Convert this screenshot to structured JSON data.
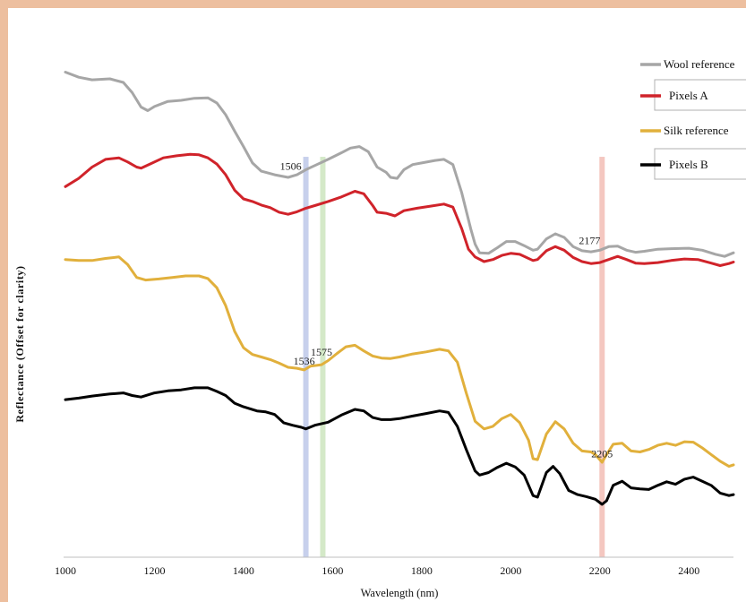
{
  "chart_data": {
    "type": "line",
    "title": "",
    "xlabel": "Wavelength (nm)",
    "ylabel": "Reflectance (Offset for clarity)",
    "xlim": [
      1000,
      2500
    ],
    "ylim": [
      0,
      1
    ],
    "xticks": [
      1000,
      1200,
      1400,
      1600,
      1800,
      2000,
      2200,
      2400
    ],
    "grid": false,
    "legend_position": "top-right",
    "series": [
      {
        "name": "Wool reference",
        "color": "#A6A6A6",
        "points": [
          [
            1000,
            0.945
          ],
          [
            1030,
            0.935
          ],
          [
            1060,
            0.93
          ],
          [
            1100,
            0.932
          ],
          [
            1130,
            0.925
          ],
          [
            1150,
            0.905
          ],
          [
            1170,
            0.877
          ],
          [
            1185,
            0.87
          ],
          [
            1200,
            0.878
          ],
          [
            1230,
            0.888
          ],
          [
            1260,
            0.89
          ],
          [
            1290,
            0.894
          ],
          [
            1320,
            0.895
          ],
          [
            1340,
            0.885
          ],
          [
            1360,
            0.862
          ],
          [
            1380,
            0.83
          ],
          [
            1400,
            0.8
          ],
          [
            1420,
            0.768
          ],
          [
            1440,
            0.752
          ],
          [
            1470,
            0.745
          ],
          [
            1500,
            0.74
          ],
          [
            1520,
            0.745
          ],
          [
            1540,
            0.755
          ],
          [
            1560,
            0.763
          ],
          [
            1590,
            0.775
          ],
          [
            1620,
            0.788
          ],
          [
            1640,
            0.797
          ],
          [
            1660,
            0.8
          ],
          [
            1680,
            0.79
          ],
          [
            1700,
            0.76
          ],
          [
            1720,
            0.75
          ],
          [
            1730,
            0.74
          ],
          [
            1745,
            0.738
          ],
          [
            1760,
            0.755
          ],
          [
            1780,
            0.765
          ],
          [
            1800,
            0.768
          ],
          [
            1830,
            0.773
          ],
          [
            1850,
            0.775
          ],
          [
            1870,
            0.765
          ],
          [
            1890,
            0.71
          ],
          [
            1910,
            0.64
          ],
          [
            1920,
            0.61
          ],
          [
            1930,
            0.593
          ],
          [
            1950,
            0.592
          ],
          [
            1970,
            0.603
          ],
          [
            1990,
            0.615
          ],
          [
            2010,
            0.615
          ],
          [
            2030,
            0.607
          ],
          [
            2050,
            0.598
          ],
          [
            2060,
            0.6
          ],
          [
            2080,
            0.62
          ],
          [
            2100,
            0.63
          ],
          [
            2120,
            0.623
          ],
          [
            2140,
            0.605
          ],
          [
            2160,
            0.597
          ],
          [
            2180,
            0.595
          ],
          [
            2200,
            0.598
          ],
          [
            2220,
            0.605
          ],
          [
            2240,
            0.606
          ],
          [
            2260,
            0.598
          ],
          [
            2280,
            0.594
          ],
          [
            2300,
            0.596
          ],
          [
            2330,
            0.6
          ],
          [
            2360,
            0.601
          ],
          [
            2400,
            0.602
          ],
          [
            2430,
            0.598
          ],
          [
            2460,
            0.59
          ],
          [
            2480,
            0.586
          ],
          [
            2500,
            0.593
          ]
        ]
      },
      {
        "name": "Pixels A",
        "color": "#D0232A",
        "points": [
          [
            1000,
            0.722
          ],
          [
            1030,
            0.738
          ],
          [
            1060,
            0.76
          ],
          [
            1090,
            0.775
          ],
          [
            1120,
            0.778
          ],
          [
            1140,
            0.77
          ],
          [
            1160,
            0.76
          ],
          [
            1170,
            0.758
          ],
          [
            1190,
            0.766
          ],
          [
            1220,
            0.778
          ],
          [
            1250,
            0.782
          ],
          [
            1280,
            0.785
          ],
          [
            1300,
            0.784
          ],
          [
            1320,
            0.778
          ],
          [
            1340,
            0.766
          ],
          [
            1360,
            0.745
          ],
          [
            1380,
            0.715
          ],
          [
            1400,
            0.698
          ],
          [
            1420,
            0.693
          ],
          [
            1440,
            0.686
          ],
          [
            1460,
            0.681
          ],
          [
            1480,
            0.672
          ],
          [
            1500,
            0.668
          ],
          [
            1520,
            0.673
          ],
          [
            1540,
            0.68
          ],
          [
            1560,
            0.685
          ],
          [
            1590,
            0.693
          ],
          [
            1620,
            0.702
          ],
          [
            1650,
            0.713
          ],
          [
            1670,
            0.708
          ],
          [
            1690,
            0.685
          ],
          [
            1700,
            0.672
          ],
          [
            1720,
            0.67
          ],
          [
            1740,
            0.665
          ],
          [
            1760,
            0.675
          ],
          [
            1790,
            0.68
          ],
          [
            1820,
            0.684
          ],
          [
            1850,
            0.688
          ],
          [
            1870,
            0.682
          ],
          [
            1890,
            0.64
          ],
          [
            1905,
            0.6
          ],
          [
            1920,
            0.585
          ],
          [
            1940,
            0.576
          ],
          [
            1960,
            0.58
          ],
          [
            1980,
            0.588
          ],
          [
            2000,
            0.592
          ],
          [
            2020,
            0.59
          ],
          [
            2050,
            0.578
          ],
          [
            2060,
            0.58
          ],
          [
            2080,
            0.597
          ],
          [
            2100,
            0.605
          ],
          [
            2120,
            0.598
          ],
          [
            2140,
            0.584
          ],
          [
            2160,
            0.576
          ],
          [
            2180,
            0.572
          ],
          [
            2200,
            0.574
          ],
          [
            2220,
            0.58
          ],
          [
            2240,
            0.586
          ],
          [
            2260,
            0.58
          ],
          [
            2280,
            0.573
          ],
          [
            2300,
            0.572
          ],
          [
            2330,
            0.574
          ],
          [
            2360,
            0.578
          ],
          [
            2390,
            0.581
          ],
          [
            2420,
            0.58
          ],
          [
            2450,
            0.573
          ],
          [
            2470,
            0.568
          ],
          [
            2490,
            0.572
          ],
          [
            2500,
            0.575
          ]
        ]
      },
      {
        "name": "Silk reference",
        "color": "#E1B03C",
        "points": [
          [
            1000,
            0.58
          ],
          [
            1030,
            0.578
          ],
          [
            1060,
            0.578
          ],
          [
            1090,
            0.582
          ],
          [
            1120,
            0.585
          ],
          [
            1140,
            0.57
          ],
          [
            1160,
            0.545
          ],
          [
            1180,
            0.54
          ],
          [
            1210,
            0.542
          ],
          [
            1240,
            0.545
          ],
          [
            1270,
            0.548
          ],
          [
            1300,
            0.548
          ],
          [
            1320,
            0.543
          ],
          [
            1340,
            0.525
          ],
          [
            1360,
            0.49
          ],
          [
            1380,
            0.44
          ],
          [
            1400,
            0.408
          ],
          [
            1420,
            0.395
          ],
          [
            1440,
            0.39
          ],
          [
            1460,
            0.385
          ],
          [
            1480,
            0.378
          ],
          [
            1500,
            0.37
          ],
          [
            1520,
            0.368
          ],
          [
            1536,
            0.365
          ],
          [
            1550,
            0.372
          ],
          [
            1575,
            0.375
          ],
          [
            1590,
            0.383
          ],
          [
            1610,
            0.397
          ],
          [
            1630,
            0.41
          ],
          [
            1650,
            0.413
          ],
          [
            1670,
            0.402
          ],
          [
            1690,
            0.392
          ],
          [
            1710,
            0.388
          ],
          [
            1730,
            0.387
          ],
          [
            1750,
            0.39
          ],
          [
            1780,
            0.396
          ],
          [
            1810,
            0.4
          ],
          [
            1840,
            0.405
          ],
          [
            1860,
            0.402
          ],
          [
            1880,
            0.38
          ],
          [
            1900,
            0.32
          ],
          [
            1920,
            0.265
          ],
          [
            1940,
            0.25
          ],
          [
            1960,
            0.255
          ],
          [
            1980,
            0.27
          ],
          [
            2000,
            0.278
          ],
          [
            2020,
            0.262
          ],
          [
            2040,
            0.228
          ],
          [
            2050,
            0.192
          ],
          [
            2060,
            0.19
          ],
          [
            2080,
            0.24
          ],
          [
            2100,
            0.264
          ],
          [
            2120,
            0.25
          ],
          [
            2140,
            0.222
          ],
          [
            2160,
            0.207
          ],
          [
            2180,
            0.205
          ],
          [
            2190,
            0.2
          ],
          [
            2205,
            0.185
          ],
          [
            2215,
            0.2
          ],
          [
            2230,
            0.22
          ],
          [
            2250,
            0.222
          ],
          [
            2270,
            0.207
          ],
          [
            2290,
            0.205
          ],
          [
            2310,
            0.21
          ],
          [
            2330,
            0.218
          ],
          [
            2350,
            0.222
          ],
          [
            2370,
            0.218
          ],
          [
            2390,
            0.225
          ],
          [
            2410,
            0.224
          ],
          [
            2430,
            0.213
          ],
          [
            2450,
            0.2
          ],
          [
            2470,
            0.187
          ],
          [
            2490,
            0.177
          ],
          [
            2500,
            0.18
          ]
        ]
      },
      {
        "name": "Pixels B",
        "color": "#000000",
        "points": [
          [
            1000,
            0.307
          ],
          [
            1030,
            0.31
          ],
          [
            1060,
            0.314
          ],
          [
            1100,
            0.318
          ],
          [
            1130,
            0.32
          ],
          [
            1150,
            0.315
          ],
          [
            1170,
            0.312
          ],
          [
            1200,
            0.32
          ],
          [
            1230,
            0.324
          ],
          [
            1260,
            0.326
          ],
          [
            1290,
            0.33
          ],
          [
            1320,
            0.33
          ],
          [
            1340,
            0.323
          ],
          [
            1360,
            0.315
          ],
          [
            1380,
            0.3
          ],
          [
            1400,
            0.293
          ],
          [
            1430,
            0.285
          ],
          [
            1450,
            0.283
          ],
          [
            1470,
            0.278
          ],
          [
            1490,
            0.262
          ],
          [
            1510,
            0.257
          ],
          [
            1530,
            0.253
          ],
          [
            1540,
            0.25
          ],
          [
            1560,
            0.257
          ],
          [
            1590,
            0.263
          ],
          [
            1620,
            0.277
          ],
          [
            1650,
            0.288
          ],
          [
            1670,
            0.285
          ],
          [
            1690,
            0.272
          ],
          [
            1710,
            0.268
          ],
          [
            1730,
            0.268
          ],
          [
            1750,
            0.27
          ],
          [
            1780,
            0.275
          ],
          [
            1810,
            0.28
          ],
          [
            1840,
            0.285
          ],
          [
            1860,
            0.282
          ],
          [
            1880,
            0.255
          ],
          [
            1900,
            0.21
          ],
          [
            1920,
            0.168
          ],
          [
            1930,
            0.16
          ],
          [
            1950,
            0.165
          ],
          [
            1970,
            0.175
          ],
          [
            1990,
            0.183
          ],
          [
            2010,
            0.176
          ],
          [
            2030,
            0.16
          ],
          [
            2050,
            0.12
          ],
          [
            2060,
            0.117
          ],
          [
            2080,
            0.165
          ],
          [
            2095,
            0.177
          ],
          [
            2110,
            0.163
          ],
          [
            2130,
            0.13
          ],
          [
            2150,
            0.122
          ],
          [
            2170,
            0.118
          ],
          [
            2190,
            0.113
          ],
          [
            2205,
            0.103
          ],
          [
            2215,
            0.11
          ],
          [
            2230,
            0.14
          ],
          [
            2250,
            0.148
          ],
          [
            2270,
            0.135
          ],
          [
            2290,
            0.133
          ],
          [
            2310,
            0.132
          ],
          [
            2330,
            0.14
          ],
          [
            2350,
            0.147
          ],
          [
            2370,
            0.142
          ],
          [
            2390,
            0.152
          ],
          [
            2410,
            0.156
          ],
          [
            2430,
            0.148
          ],
          [
            2450,
            0.14
          ],
          [
            2470,
            0.125
          ],
          [
            2490,
            0.12
          ],
          [
            2500,
            0.122
          ]
        ]
      }
    ],
    "vertical_bands": [
      {
        "x": 1540,
        "color": "#C7D0EC"
      },
      {
        "x": 1578,
        "color": "#D4E9C8"
      },
      {
        "x": 2205,
        "color": "#F4C7C0"
      }
    ],
    "annotations": [
      {
        "text": "1506",
        "x": 1506,
        "y": 0.755
      },
      {
        "text": "2177",
        "x": 2177,
        "y": 0.61
      },
      {
        "text": "1536",
        "x": 1536,
        "y": 0.375
      },
      {
        "text": "1575",
        "x": 1575,
        "y": 0.393
      },
      {
        "text": "2205",
        "x": 2205,
        "y": 0.195
      }
    ]
  }
}
